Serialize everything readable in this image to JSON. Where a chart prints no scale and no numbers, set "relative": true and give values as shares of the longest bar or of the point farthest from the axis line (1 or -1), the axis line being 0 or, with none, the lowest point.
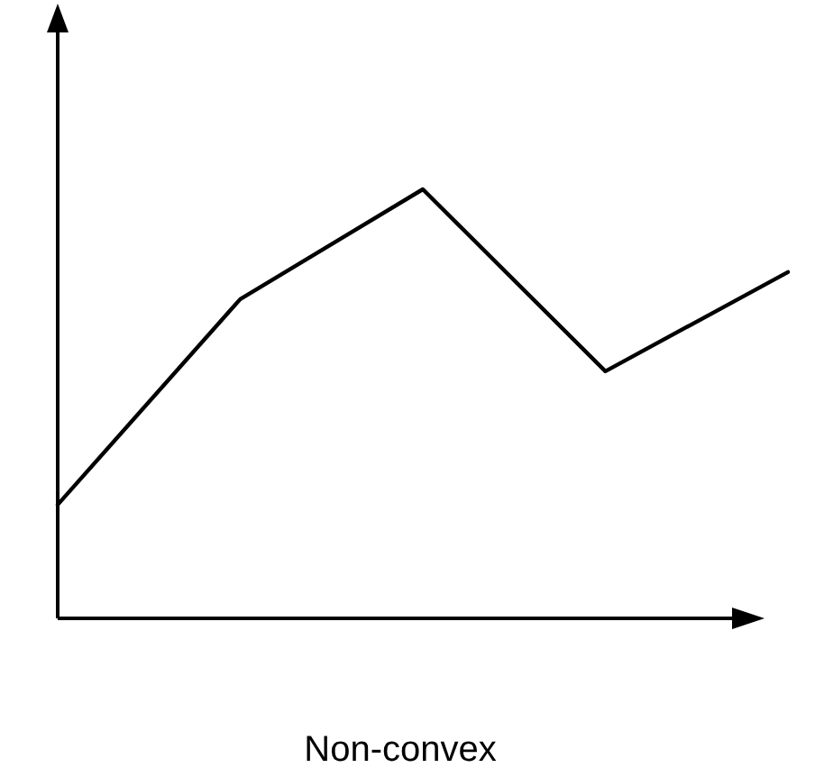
{
  "chart_data": {
    "type": "line",
    "title": "Non-convex",
    "relative": true,
    "categories": [
      null,
      null,
      null,
      null,
      null
    ],
    "values": [
      0.265,
      0.744,
      1,
      0.576,
      0.807
    ],
    "color": "#000000"
  }
}
